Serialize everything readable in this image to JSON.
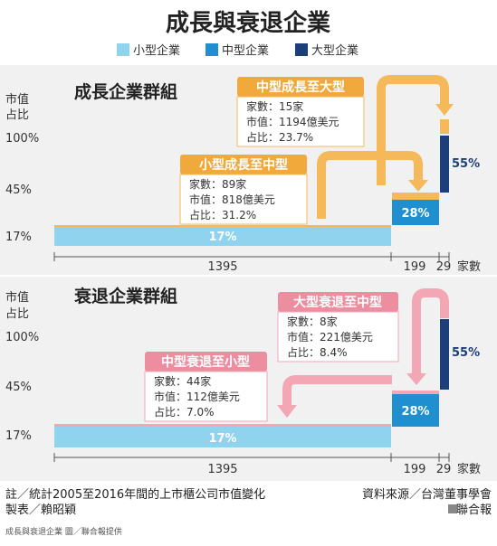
{
  "title": "成長與衰退企業",
  "legend": [
    {
      "label": "小型企業",
      "color": "#8fd3ee"
    },
    {
      "label": "中型企業",
      "color": "#1f8fcf"
    },
    {
      "label": "大型企業",
      "color": "#1c3f7a"
    }
  ],
  "y_axis_label_line1": "市值",
  "y_axis_label_line2": "占比",
  "y_ticks": [
    "100%",
    "45%",
    "17%"
  ],
  "count_unit": "家數",
  "colors": {
    "small": "#8fd3ee",
    "medium": "#1f8fcf",
    "large": "#1c3f7a",
    "growth_arrow": "#f5b95a",
    "growth_title_bg": "#f2a93b",
    "decline_arrow": "#f3a6b4",
    "decline_title_bg": "#ec8ea0",
    "panel_bg": "#f1f1f1"
  },
  "growth": {
    "group_title": "成長企業群組",
    "box_large": {
      "title": "中型成長至大型",
      "l1": "家數：15家",
      "l2": "市值：1194億美元",
      "l3": "占比：23.7%"
    },
    "box_medium": {
      "title": "小型成長至中型",
      "l1": "家數：89家",
      "l2": "市值：818億美元",
      "l3": "占比：31.2%"
    }
  },
  "decline": {
    "group_title": "衰退企業群組",
    "box_large": {
      "title": "大型衰退至中型",
      "l1": "家數：8家",
      "l2": "市值：221億美元",
      "l3": "占比：8.4%"
    },
    "box_medium": {
      "title": "中型衰退至小型",
      "l1": "家數：44家",
      "l2": "市值：112億美元",
      "l3": "占比：7.0%"
    }
  },
  "footer": {
    "note_line1": "註／統計2005至2016年間的上市櫃公司市值變化",
    "note_line2": "製表／賴昭穎",
    "source": "資料來源／台灣董事學會",
    "brand": "聯合報",
    "caption": "成長與衰退企業 圖／聯合報提供"
  },
  "chart_data": [
    {
      "type": "bar",
      "title": "成長企業群組",
      "ylabel": "市值占比",
      "y_ticks": [
        "17%",
        "45%",
        "100%"
      ],
      "xlabel": "家數",
      "categories": [
        "小型企業",
        "中型企業",
        "大型企業"
      ],
      "firm_counts": [
        1395,
        199,
        29
      ],
      "cumulative_share_top_percent": [
        17,
        45,
        100
      ],
      "values": [
        17,
        28,
        55
      ],
      "data_labels": [
        "17%",
        "28%",
        "55%"
      ]
    },
    {
      "type": "bar",
      "title": "衰退企業群組",
      "ylabel": "市值占比",
      "y_ticks": [
        "17%",
        "45%",
        "100%"
      ],
      "xlabel": "家數",
      "categories": [
        "小型企業",
        "中型企業",
        "大型企業"
      ],
      "firm_counts": [
        1395,
        199,
        29
      ],
      "cumulative_share_top_percent": [
        17,
        45,
        100
      ],
      "values": [
        17,
        28,
        55
      ],
      "data_labels": [
        "17%",
        "28%",
        "55%"
      ]
    }
  ]
}
